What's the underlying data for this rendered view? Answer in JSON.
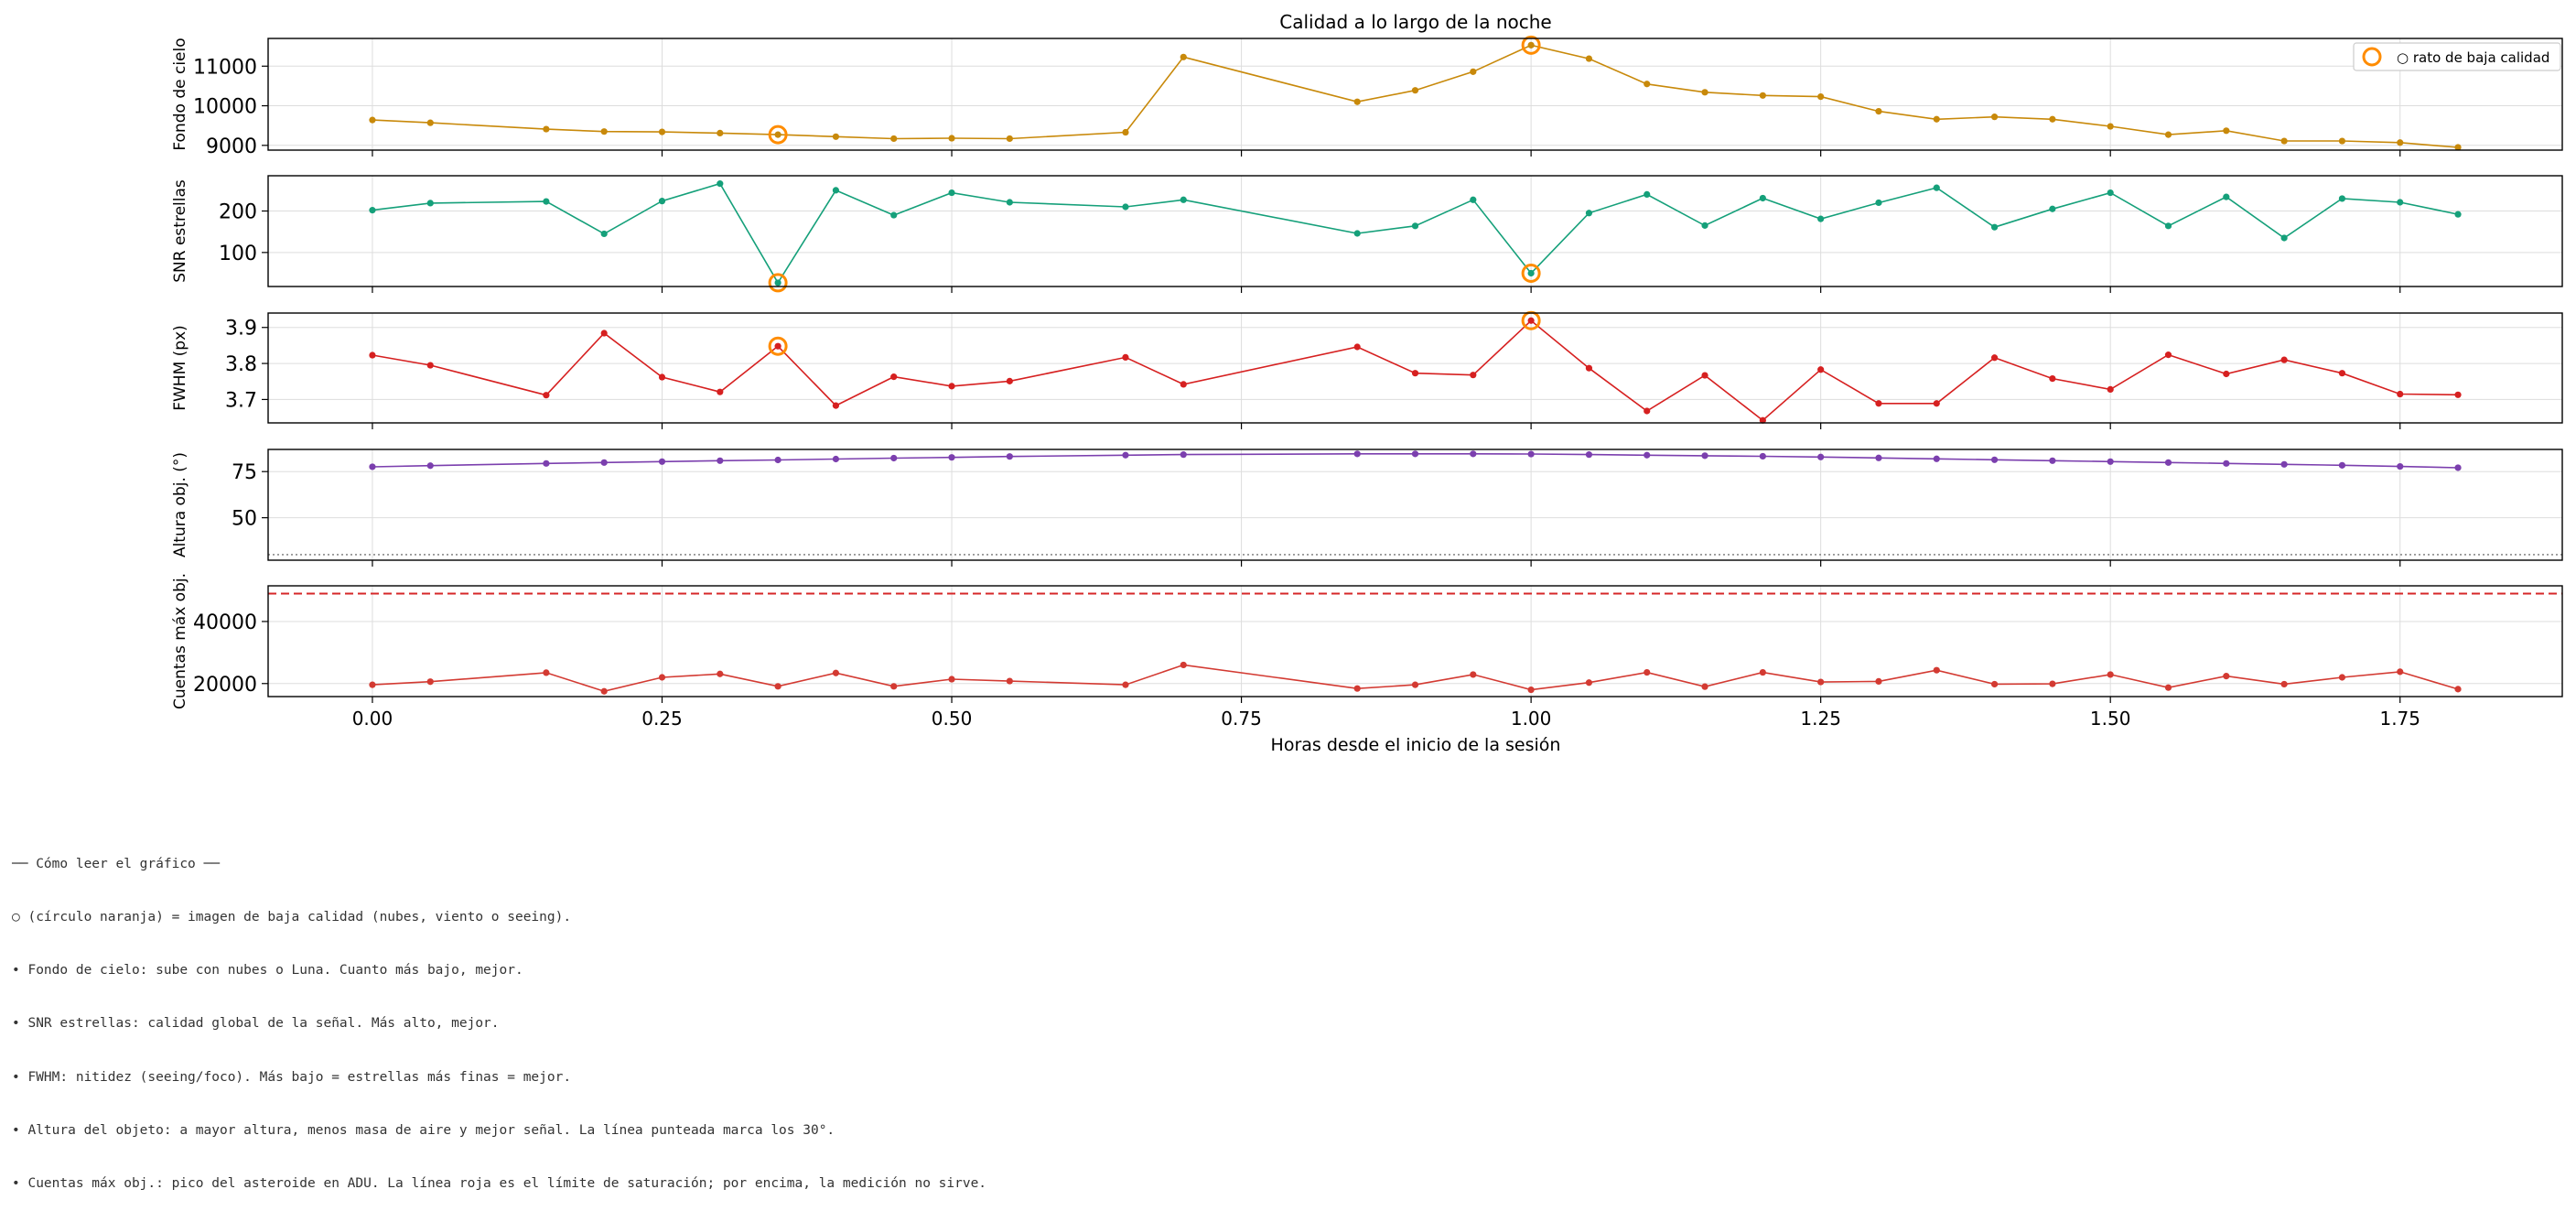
{
  "title": "Calidad a lo largo de la noche",
  "legend_label": "○ rato de baja calidad",
  "colors": {
    "sky": "#c8890a",
    "snr": "#15a07a",
    "fwhm": "#d62020",
    "alt": "#7b3fae",
    "counts": "#d33a32",
    "bad": "#ff8c00",
    "saturation": "#d62728",
    "grid": "#dddddd"
  },
  "chart_data": {
    "type": "line",
    "title": "Calidad a lo largo de la noche",
    "xlabel": "Horas desde el inicio de la sesión",
    "xlim": [
      -0.09,
      1.89
    ],
    "xticks": [
      0.0,
      0.25,
      0.5,
      0.75,
      1.0,
      1.25,
      1.5,
      1.75
    ],
    "xtick_labels": [
      "0.00",
      "0.25",
      "0.50",
      "0.75",
      "1.00",
      "1.25",
      "1.50",
      "1.75"
    ],
    "grid": true,
    "legend_position": "top-right",
    "legend": [
      "○ rato de baja calidad"
    ],
    "x": [
      0.0,
      0.05,
      0.15,
      0.2,
      0.25,
      0.3,
      0.35,
      0.4,
      0.45,
      0.5,
      0.55,
      0.65,
      0.7,
      0.85,
      0.9,
      0.95,
      1.0,
      1.05,
      1.1,
      1.15,
      1.2,
      1.25,
      1.3,
      1.35,
      1.4,
      1.45,
      1.5,
      1.55,
      1.6,
      1.65,
      1.7,
      1.75,
      1.8
    ],
    "bad_quality_x": [
      0.35,
      1.0
    ],
    "panels": [
      {
        "id": "sky",
        "ylabel": "Fondo de cielo",
        "ylim": [
          8880,
          11700
        ],
        "yticks": [
          9000,
          10000,
          11000
        ],
        "ytick_labels": [
          "9000",
          "10000",
          "11000"
        ],
        "values": [
          9640,
          9570,
          9410,
          9350,
          9340,
          9310,
          9270,
          9220,
          9170,
          9180,
          9170,
          9330,
          11230,
          10100,
          10390,
          10860,
          11530,
          11190,
          10550,
          10340,
          10260,
          10230,
          9860,
          9660,
          9720,
          9660,
          9480,
          9270,
          9370,
          9110,
          9110,
          9070,
          8950
        ]
      },
      {
        "id": "snr",
        "ylabel": "SNR estrellas",
        "ylim": [
          18,
          285
        ],
        "yticks": [
          100,
          200
        ],
        "ytick_labels": [
          "100",
          "200"
        ],
        "values": [
          202,
          219,
          223,
          145,
          224,
          266,
          27,
          250,
          190,
          244,
          221,
          210,
          227,
          146,
          164,
          227,
          50,
          195,
          240,
          165,
          231,
          181,
          220,
          256,
          161,
          205,
          244,
          164,
          234,
          135,
          230,
          221,
          192
        ]
      },
      {
        "id": "fwhm",
        "ylabel": "FWHM (px)",
        "ylim": [
          3.635,
          3.94
        ],
        "yticks": [
          3.7,
          3.8,
          3.9
        ],
        "ytick_labels": [
          "3.7",
          "3.8",
          "3.9"
        ],
        "values": [
          3.823,
          3.795,
          3.712,
          3.884,
          3.762,
          3.721,
          3.848,
          3.683,
          3.763,
          3.737,
          3.751,
          3.817,
          3.742,
          3.846,
          3.773,
          3.768,
          3.919,
          3.787,
          3.668,
          3.767,
          3.642,
          3.783,
          3.689,
          3.689,
          3.816,
          3.758,
          3.728,
          3.824,
          3.771,
          3.81,
          3.773,
          3.715,
          3.713
        ]
      },
      {
        "id": "alt",
        "ylabel": "Altura obj. (°)",
        "ylim": [
          27,
          87
        ],
        "yticks": [
          50,
          75
        ],
        "ytick_labels": [
          "50",
          "75"
        ],
        "reference_line": 30,
        "values": [
          77.6,
          78.2,
          79.4,
          79.9,
          80.4,
          80.9,
          81.3,
          81.8,
          82.3,
          82.7,
          83.2,
          83.9,
          84.2,
          84.6,
          84.6,
          84.6,
          84.5,
          84.2,
          83.9,
          83.6,
          83.3,
          82.9,
          82.4,
          81.9,
          81.4,
          80.9,
          80.4,
          79.9,
          79.4,
          78.9,
          78.4,
          77.8,
          77.1
        ]
      },
      {
        "id": "counts",
        "ylabel": "Cuentas máx obj.",
        "ylim": [
          15800,
          51500
        ],
        "yticks": [
          20000,
          40000
        ],
        "ytick_labels": [
          "20000",
          "40000"
        ],
        "saturation_line": 49000,
        "values": [
          19600,
          20600,
          23500,
          17500,
          22000,
          23100,
          19100,
          23400,
          19100,
          21400,
          20800,
          19600,
          26000,
          18400,
          19600,
          22900,
          18000,
          20300,
          23600,
          19000,
          23600,
          20500,
          20700,
          24300,
          19800,
          19900,
          22900,
          18700,
          22400,
          19800,
          22000,
          23800,
          18200
        ]
      }
    ]
  },
  "notes": [
    "── Cómo leer el gráfico ──",
    "○ (círculo naranja) = imagen de baja calidad (nubes, viento o seeing).",
    "• Fondo de cielo: sube con nubes o Luna. Cuanto más bajo, mejor.",
    "• SNR estrellas: calidad global de la señal. Más alto, mejor.",
    "• FWHM: nitidez (seeing/foco). Más bajo = estrellas más finas = mejor.",
    "• Altura del objeto: a mayor altura, menos masa de aire y mejor señal. La línea punteada marca los 30°.",
    "• Cuentas máx obj.: pico del asteroide en ADU. La línea roja es el límite de saturación; por encima, la medición no sirve."
  ]
}
